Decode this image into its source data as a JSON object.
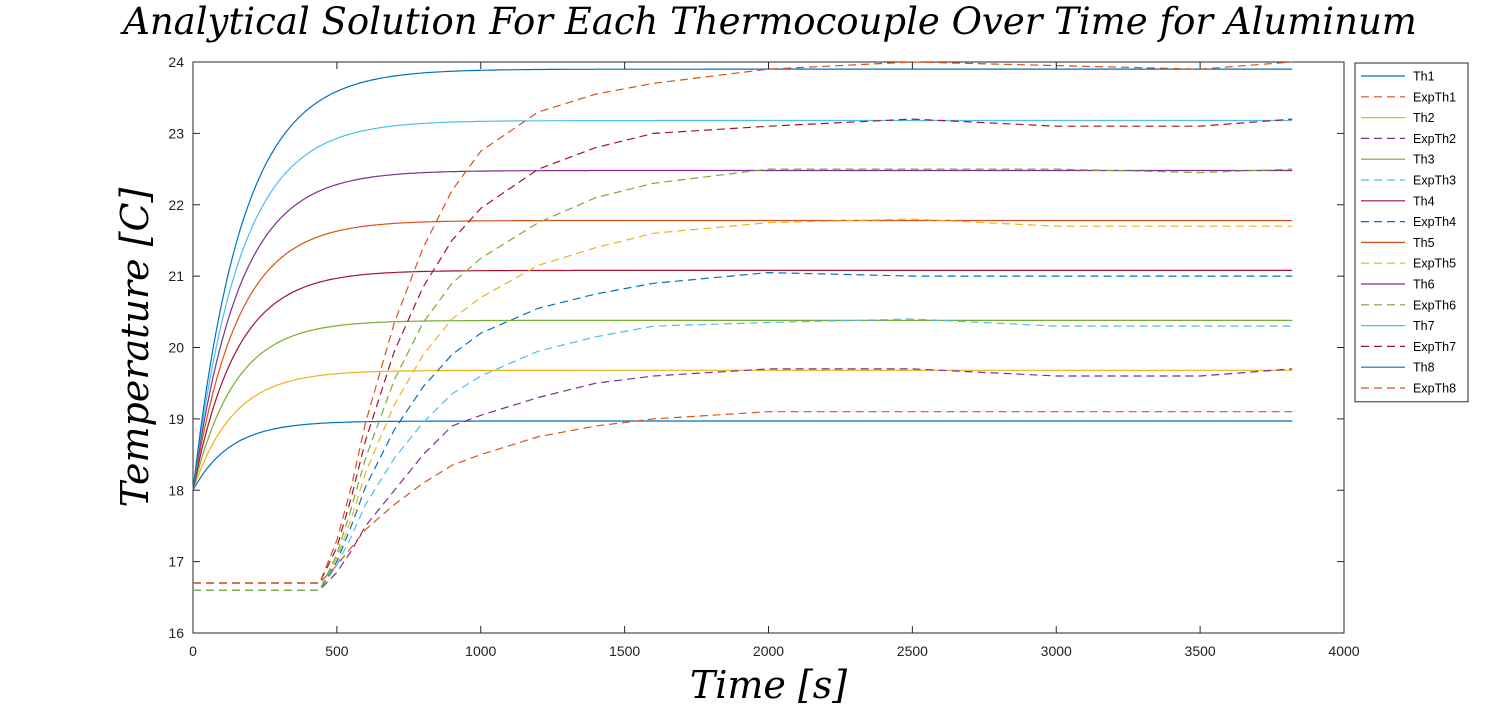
{
  "chart_data": {
    "type": "line",
    "title": "Analytical Solution For Each Thermocouple Over Time for Aluminum",
    "xlabel": "Time [s]",
    "ylabel": "Temperature [C]",
    "xlim": [
      0,
      4000
    ],
    "ylim": [
      16,
      24
    ],
    "xticks": [
      0,
      500,
      1000,
      1500,
      2000,
      2500,
      3000,
      3500,
      4000
    ],
    "yticks": [
      16,
      17,
      18,
      19,
      20,
      21,
      22,
      23,
      24
    ],
    "grid": false,
    "legend_position": "outside-right",
    "colors": {
      "blue": "#0072BD",
      "orange": "#D95319",
      "yellow": "#EDB120",
      "purple": "#7E2F8E",
      "green": "#77AC30",
      "cyan": "#4DBEEE",
      "darkred": "#A2142F"
    },
    "analytical_model": "T = T_final - (T_final - 18) * exp(-t / tau)",
    "series": [
      {
        "name": "Th1",
        "style": "solid",
        "color": "#0072BD",
        "initial": 18.0,
        "final": 18.97,
        "tau": 130
      },
      {
        "name": "ExpTh1",
        "style": "dashed",
        "color": "#D95319",
        "x": [
          0,
          440,
          500,
          550,
          600,
          700,
          800,
          900,
          1000,
          1200,
          1400,
          1600,
          2000,
          2500,
          3000,
          3500,
          3820
        ],
        "y": [
          16.7,
          16.7,
          16.95,
          17.2,
          17.45,
          17.8,
          18.1,
          18.35,
          18.5,
          18.75,
          18.9,
          19.0,
          19.1,
          19.1,
          19.1,
          19.1,
          19.1
        ]
      },
      {
        "name": "Th2",
        "style": "solid",
        "color": "#EDB120",
        "initial": 18.0,
        "final": 19.68,
        "tau": 140
      },
      {
        "name": "ExpTh2",
        "style": "dashed",
        "color": "#7E2F8E",
        "x": [
          0,
          440,
          500,
          550,
          600,
          700,
          800,
          900,
          1000,
          1200,
          1400,
          1600,
          2000,
          2500,
          3000,
          3500,
          3820
        ],
        "y": [
          16.6,
          16.6,
          16.85,
          17.15,
          17.5,
          18.0,
          18.5,
          18.9,
          19.05,
          19.3,
          19.5,
          19.6,
          19.7,
          19.7,
          19.6,
          19.6,
          19.7
        ]
      },
      {
        "name": "Th3",
        "style": "solid",
        "color": "#77AC30",
        "initial": 18.0,
        "final": 20.38,
        "tau": 145
      },
      {
        "name": "ExpTh3",
        "style": "dashed",
        "color": "#4DBEEE",
        "x": [
          0,
          440,
          500,
          550,
          600,
          700,
          800,
          900,
          1000,
          1200,
          1400,
          1600,
          2000,
          2500,
          3000,
          3500,
          3820
        ],
        "y": [
          16.6,
          16.6,
          16.95,
          17.35,
          17.8,
          18.45,
          18.95,
          19.35,
          19.6,
          19.95,
          20.15,
          20.3,
          20.35,
          20.4,
          20.3,
          20.3,
          20.3
        ]
      },
      {
        "name": "Th4",
        "style": "solid",
        "color": "#A2142F",
        "initial": 18.0,
        "final": 21.08,
        "tau": 150
      },
      {
        "name": "ExpTh4",
        "style": "dashed",
        "color": "#0072BD",
        "x": [
          0,
          440,
          500,
          550,
          600,
          700,
          800,
          900,
          1000,
          1200,
          1400,
          1600,
          2000,
          2500,
          3000,
          3500,
          3820
        ],
        "y": [
          16.6,
          16.6,
          17.0,
          17.5,
          18.05,
          18.85,
          19.45,
          19.9,
          20.2,
          20.55,
          20.75,
          20.9,
          21.05,
          21.0,
          21.0,
          21.0,
          21.0
        ]
      },
      {
        "name": "Th5",
        "style": "solid",
        "color": "#D95319",
        "initial": 18.0,
        "final": 21.78,
        "tau": 155
      },
      {
        "name": "ExpTh5",
        "style": "dashed",
        "color": "#EDB120",
        "x": [
          0,
          440,
          500,
          550,
          600,
          700,
          800,
          900,
          1000,
          1200,
          1400,
          1600,
          2000,
          2500,
          3000,
          3500,
          3820
        ],
        "y": [
          16.6,
          16.6,
          17.05,
          17.6,
          18.25,
          19.2,
          19.9,
          20.4,
          20.7,
          21.15,
          21.4,
          21.6,
          21.75,
          21.8,
          21.7,
          21.7,
          21.7
        ]
      },
      {
        "name": "Th6",
        "style": "solid",
        "color": "#7E2F8E",
        "initial": 18.0,
        "final": 22.48,
        "tau": 160
      },
      {
        "name": "ExpTh6",
        "style": "dashed",
        "color": "#77AC30",
        "x": [
          0,
          440,
          500,
          550,
          600,
          700,
          800,
          900,
          1000,
          1200,
          1400,
          1600,
          2000,
          2500,
          3000,
          3500,
          3820
        ],
        "y": [
          16.6,
          16.6,
          17.1,
          17.75,
          18.45,
          19.55,
          20.35,
          20.9,
          21.25,
          21.75,
          22.1,
          22.3,
          22.5,
          22.5,
          22.5,
          22.45,
          22.5
        ]
      },
      {
        "name": "Th7",
        "style": "solid",
        "color": "#4DBEEE",
        "initial": 18.0,
        "final": 23.18,
        "tau": 165
      },
      {
        "name": "ExpTh7",
        "style": "dashed",
        "color": "#A2142F",
        "x": [
          0,
          440,
          500,
          550,
          600,
          700,
          800,
          900,
          1000,
          1200,
          1400,
          1600,
          2000,
          2500,
          3000,
          3500,
          3820
        ],
        "y": [
          16.7,
          16.7,
          17.2,
          17.9,
          18.7,
          19.95,
          20.85,
          21.5,
          21.95,
          22.5,
          22.8,
          23.0,
          23.1,
          23.2,
          23.1,
          23.1,
          23.2
        ]
      },
      {
        "name": "Th8",
        "style": "solid",
        "color": "#0072BD",
        "initial": 18.0,
        "final": 23.9,
        "tau": 170
      },
      {
        "name": "ExpTh8",
        "style": "dashed",
        "color": "#D95319",
        "x": [
          0,
          440,
          500,
          550,
          600,
          700,
          800,
          900,
          1000,
          1200,
          1400,
          1600,
          2000,
          2500,
          3000,
          3500,
          3820
        ],
        "y": [
          16.7,
          16.7,
          17.3,
          18.05,
          18.95,
          20.35,
          21.4,
          22.2,
          22.75,
          23.3,
          23.55,
          23.7,
          23.9,
          24.0,
          23.95,
          23.9,
          24.0
        ]
      }
    ]
  }
}
